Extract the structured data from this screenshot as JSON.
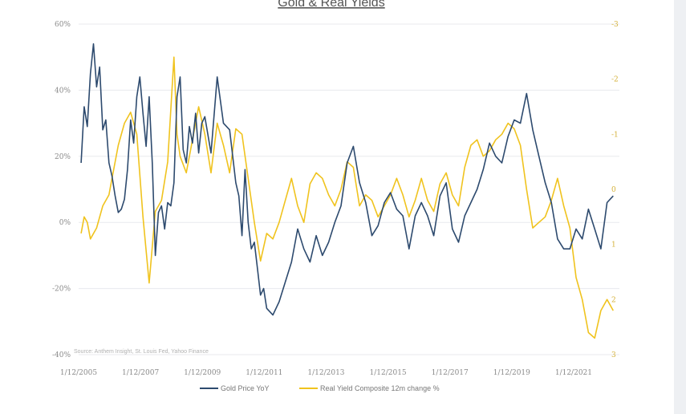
{
  "chart_data": {
    "type": "line",
    "title": "Gold & Real Yields",
    "source": "Source: Anthem Insight, St. Louis Fed, Yahoo Finance",
    "x_tick_labels": [
      "1/12/2005",
      "1/12/2007",
      "1/12/2009",
      "1/12/2011",
      "1/12/2013",
      "1/12/2015",
      "1/12/2017",
      "1/12/2019",
      "1/12/2021"
    ],
    "x_range": [
      2005.92,
      2023.4
    ],
    "y_left": {
      "ticks": [
        "60%",
        "40%",
        "20%",
        "0%",
        "-20%",
        "-40%"
      ],
      "values": [
        60,
        40,
        20,
        0,
        -20,
        -40
      ],
      "range": [
        -40,
        60
      ]
    },
    "y_right": {
      "ticks": [
        "-3",
        "-2",
        "-1",
        "0",
        "1",
        "2",
        "3"
      ],
      "values": [
        -3,
        -2,
        -1,
        0,
        1,
        2,
        3
      ],
      "range": [
        -3,
        3
      ],
      "inverted": true
    },
    "grid": true,
    "legend_position": "bottom",
    "colors": {
      "gold": "#2d4a6e",
      "real_yield": "#f0c31e",
      "grid": "#e8eaee"
    },
    "series": [
      {
        "name": "Gold Price YoY",
        "axis": "left",
        "x": [
          2006.0,
          2006.1,
          2006.2,
          2006.3,
          2006.4,
          2006.5,
          2006.6,
          2006.7,
          2006.8,
          2006.9,
          2007.0,
          2007.1,
          2007.2,
          2007.3,
          2007.4,
          2007.5,
          2007.6,
          2007.7,
          2007.8,
          2007.9,
          2008.0,
          2008.1,
          2008.2,
          2008.3,
          2008.4,
          2008.5,
          2008.6,
          2008.7,
          2008.8,
          2008.9,
          2009.0,
          2009.1,
          2009.2,
          2009.3,
          2009.4,
          2009.5,
          2009.6,
          2009.7,
          2009.8,
          2009.9,
          2010.0,
          2010.2,
          2010.4,
          2010.6,
          2010.8,
          2011.0,
          2011.1,
          2011.2,
          2011.3,
          2011.4,
          2011.5,
          2011.6,
          2011.7,
          2011.8,
          2011.9,
          2012.0,
          2012.2,
          2012.4,
          2012.6,
          2012.8,
          2013.0,
          2013.2,
          2013.4,
          2013.6,
          2013.8,
          2014.0,
          2014.2,
          2014.4,
          2014.6,
          2014.8,
          2015.0,
          2015.2,
          2015.4,
          2015.6,
          2015.8,
          2016.0,
          2016.2,
          2016.4,
          2016.6,
          2016.8,
          2017.0,
          2017.2,
          2017.4,
          2017.6,
          2017.8,
          2018.0,
          2018.2,
          2018.4,
          2018.6,
          2018.8,
          2019.0,
          2019.2,
          2019.4,
          2019.6,
          2019.8,
          2020.0,
          2020.2,
          2020.4,
          2020.6,
          2020.8,
          2021.0,
          2021.2,
          2021.4,
          2021.6,
          2021.8,
          2022.0,
          2022.2,
          2022.4,
          2022.6,
          2022.8,
          2023.0,
          2023.2
        ],
        "values": [
          18,
          35,
          29,
          45,
          54,
          41,
          47,
          28,
          31,
          18,
          14,
          8,
          3,
          4,
          7,
          16,
          31,
          24,
          38,
          44,
          33,
          23,
          38,
          18,
          -10,
          3,
          5,
          -2,
          6,
          5,
          12,
          38,
          44,
          22,
          18,
          29,
          24,
          33,
          21,
          30,
          32,
          21,
          44,
          30,
          28,
          12,
          8,
          -4,
          16,
          0,
          -8,
          -6,
          -14,
          -22,
          -20,
          -26,
          -28,
          -24,
          -18,
          -12,
          -2,
          -8,
          -12,
          -4,
          -10,
          -6,
          0,
          5,
          18,
          23,
          12,
          6,
          -4,
          -1,
          6,
          9,
          4,
          2,
          -8,
          2,
          6,
          2,
          -4,
          8,
          12,
          -2,
          -6,
          2,
          6,
          10,
          16,
          24,
          20,
          18,
          26,
          31,
          30,
          39,
          28,
          20,
          12,
          6,
          -5,
          -8,
          -8,
          -2,
          -5,
          4,
          -2,
          -8,
          6,
          8
        ]
      },
      {
        "name": "Real Yield Composite 12m change %",
        "axis": "right",
        "x": [
          2006.0,
          2006.1,
          2006.2,
          2006.3,
          2006.5,
          2006.7,
          2006.9,
          2007.0,
          2007.2,
          2007.4,
          2007.6,
          2007.8,
          2008.0,
          2008.2,
          2008.4,
          2008.5,
          2008.6,
          2008.8,
          2009.0,
          2009.1,
          2009.2,
          2009.4,
          2009.6,
          2009.8,
          2010.0,
          2010.2,
          2010.4,
          2010.6,
          2010.8,
          2011.0,
          2011.2,
          2011.4,
          2011.6,
          2011.8,
          2012.0,
          2012.2,
          2012.4,
          2012.6,
          2012.8,
          2013.0,
          2013.2,
          2013.4,
          2013.6,
          2013.8,
          2014.0,
          2014.2,
          2014.4,
          2014.6,
          2014.8,
          2015.0,
          2015.2,
          2015.4,
          2015.6,
          2015.8,
          2016.0,
          2016.2,
          2016.4,
          2016.6,
          2016.8,
          2017.0,
          2017.2,
          2017.4,
          2017.6,
          2017.8,
          2018.0,
          2018.2,
          2018.4,
          2018.6,
          2018.8,
          2019.0,
          2019.2,
          2019.4,
          2019.6,
          2019.8,
          2020.0,
          2020.2,
          2020.4,
          2020.6,
          2020.8,
          2021.0,
          2021.2,
          2021.4,
          2021.6,
          2021.8,
          2022.0,
          2022.2,
          2022.4,
          2022.6,
          2022.8,
          2023.0,
          2023.2
        ],
        "values": [
          0.8,
          0.5,
          0.6,
          0.9,
          0.7,
          0.3,
          0.1,
          -0.2,
          -0.8,
          -1.2,
          -1.4,
          -1.0,
          0.5,
          1.7,
          0.4,
          0.3,
          0.2,
          -0.5,
          -2.4,
          -1.0,
          -0.6,
          -0.3,
          -0.9,
          -1.5,
          -1.0,
          -0.3,
          -1.2,
          -0.8,
          -0.3,
          -1.1,
          -1.0,
          -0.2,
          0.6,
          1.3,
          0.8,
          0.9,
          0.6,
          0.2,
          -0.2,
          0.3,
          0.6,
          -0.1,
          -0.3,
          -0.2,
          0.1,
          0.3,
          0.0,
          -0.5,
          -0.4,
          0.3,
          0.1,
          0.2,
          0.5,
          0.3,
          0.1,
          -0.2,
          0.1,
          0.5,
          0.2,
          -0.2,
          0.2,
          0.4,
          -0.1,
          -0.3,
          0.1,
          0.3,
          -0.4,
          -0.8,
          -0.9,
          -0.6,
          -0.7,
          -0.9,
          -1.0,
          -1.2,
          -1.1,
          -0.8,
          0.0,
          0.7,
          0.6,
          0.5,
          0.2,
          -0.2,
          0.3,
          0.7,
          1.6,
          2.0,
          2.6,
          2.7,
          2.2,
          2.0,
          2.2
        ]
      }
    ]
  },
  "legend": {
    "gold_label": "Gold Price YoY",
    "yield_label": "Real Yield Composite 12m change %"
  }
}
